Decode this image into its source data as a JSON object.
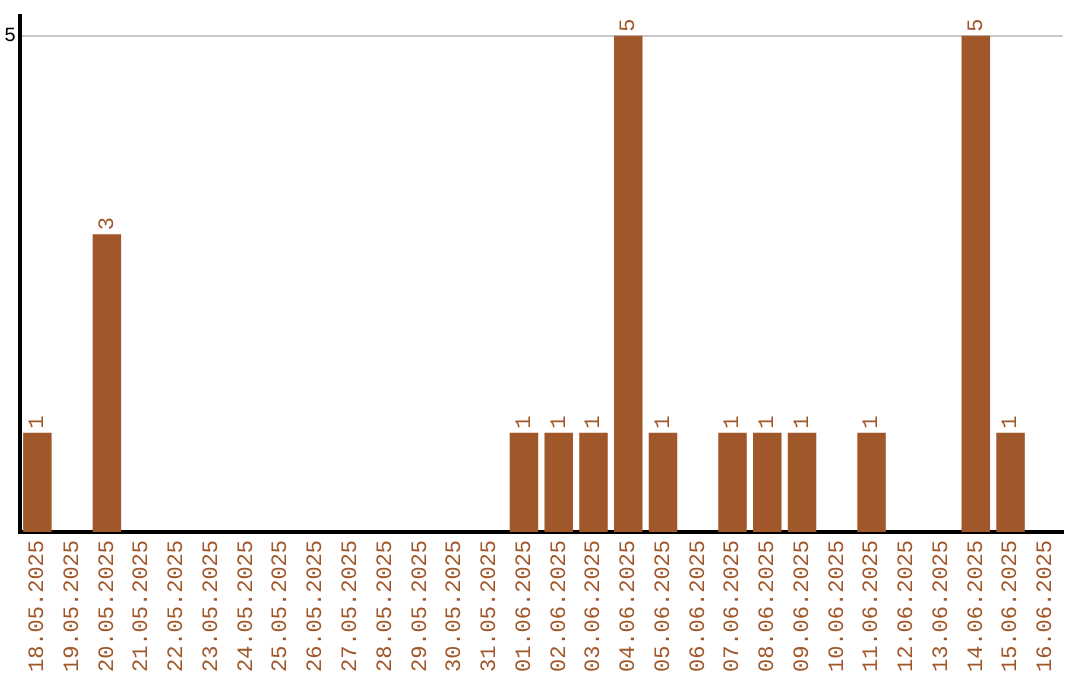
{
  "chart_data": {
    "type": "bar",
    "categories": [
      "18.05.2025",
      "19.05.2025",
      "20.05.2025",
      "21.05.2025",
      "22.05.2025",
      "23.05.2025",
      "24.05.2025",
      "25.05.2025",
      "26.05.2025",
      "27.05.2025",
      "28.05.2025",
      "29.05.2025",
      "30.05.2025",
      "31.05.2025",
      "01.06.2025",
      "02.06.2025",
      "03.06.2025",
      "04.06.2025",
      "05.06.2025",
      "06.06.2025",
      "07.06.2025",
      "08.06.2025",
      "09.06.2025",
      "10.06.2025",
      "11.06.2025",
      "12.06.2025",
      "13.06.2025",
      "14.06.2025",
      "15.06.2025",
      "16.06.2025"
    ],
    "values": [
      1,
      0,
      3,
      0,
      0,
      0,
      0,
      0,
      0,
      0,
      0,
      0,
      0,
      0,
      1,
      1,
      1,
      5,
      1,
      0,
      1,
      1,
      1,
      0,
      1,
      0,
      0,
      5,
      1,
      0
    ],
    "value_labels": [
      "1",
      null,
      "3",
      null,
      null,
      null,
      null,
      null,
      null,
      null,
      null,
      null,
      null,
      null,
      "1",
      "1",
      "1",
      "5",
      "1",
      null,
      "1",
      "1",
      "1",
      null,
      "1",
      null,
      null,
      "5",
      "1",
      null
    ],
    "color": "#a0572a",
    "ylim": [
      0,
      5.2
    ],
    "yticks": [
      5
    ],
    "grid": "y",
    "legend": false
  }
}
